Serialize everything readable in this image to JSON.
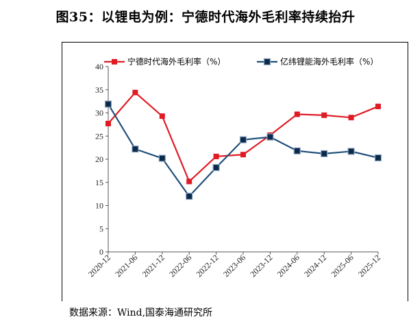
{
  "title": "图35：以锂电为例：宁德时代海外毛利率持续抬升",
  "source": "数据来源：Wind,国泰海通研究所",
  "colors": {
    "series1": "#e01b24",
    "series2": "#1f4e79"
  },
  "chart_data": {
    "type": "line",
    "categories": [
      "2020-12",
      "2021-06",
      "2021-12",
      "2022-06",
      "2022-12",
      "2023-06",
      "2023-12",
      "2024-06",
      "2024-12",
      "2025-06",
      "2025-12"
    ],
    "series": [
      {
        "name": "宁德时代海外毛利率（%）",
        "marker": "square",
        "values": [
          27.7,
          34.4,
          29.3,
          15.2,
          20.6,
          21.0,
          25.2,
          29.7,
          29.5,
          29.0,
          31.4
        ]
      },
      {
        "name": "亿纬锂能海外毛利率（%）",
        "marker": "square",
        "values": [
          31.9,
          22.2,
          20.2,
          12.0,
          18.2,
          24.2,
          24.8,
          21.8,
          21.2,
          21.7,
          20.3
        ]
      }
    ],
    "yticks": [
      "0",
      "5",
      "10",
      "15",
      "20",
      "25",
      "30",
      "35",
      "40"
    ],
    "ylim": [
      0,
      40
    ],
    "grid": false,
    "legend_position": "top"
  }
}
